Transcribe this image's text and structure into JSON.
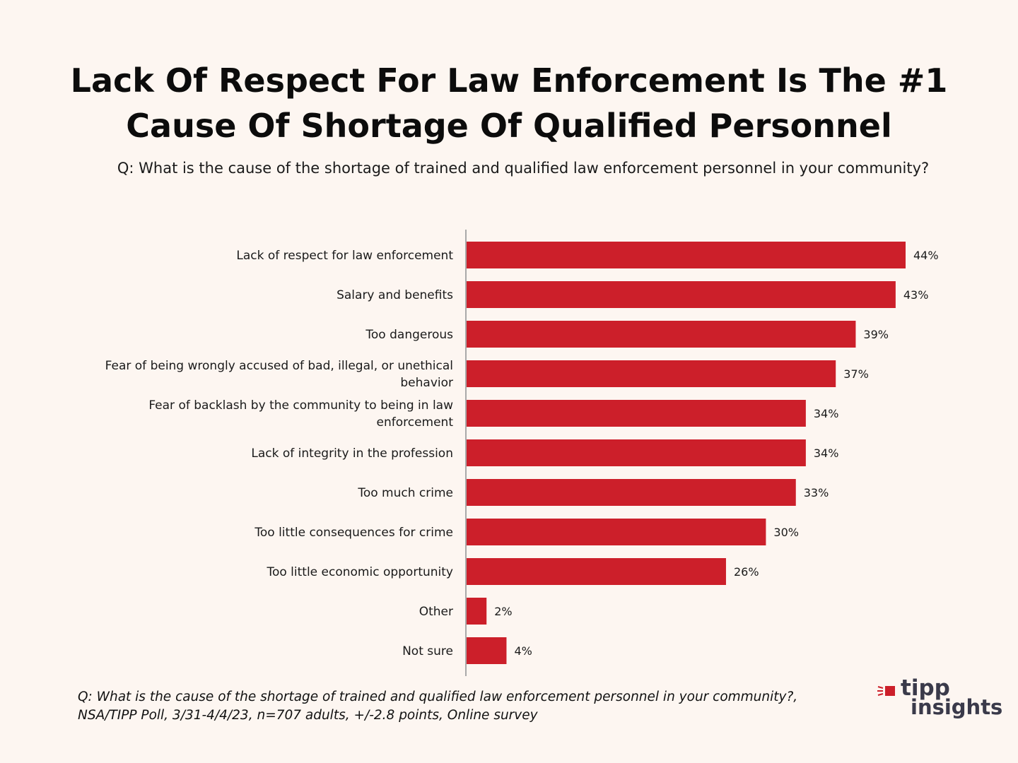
{
  "title_line1": "Lack Of Respect For Law Enforcement Is The #1",
  "title_line2": "Cause Of Shortage Of Qualified Personnel",
  "question": "Q: What is the cause of the shortage of trained and qualified law enforcement personnel in your community?",
  "footnote_line1": "Q: What is the cause of the shortage of trained and qualified law enforcement personnel in your community?,",
  "footnote_line2": "NSA/TIPP Poll, 3/31-4/4/23, n=707 adults, +/-2.8 points, Online survey",
  "logo": {
    "top": "tipp",
    "bottom": "insights"
  },
  "colors": {
    "bar": "#cc1f2a",
    "background": "#fdf6f1",
    "axis": "#a9a9a9"
  },
  "chart_data": {
    "type": "bar",
    "orientation": "horizontal",
    "categories": [
      [
        "Lack of respect for law enforcement"
      ],
      [
        "Salary and benefits"
      ],
      [
        "Too dangerous"
      ],
      [
        "Fear of being wrongly accused of bad, illegal, or unethical",
        "behavior"
      ],
      [
        "Fear of backlash by the community to being in law",
        "enforcement"
      ],
      [
        "Lack of integrity in the profession"
      ],
      [
        "Too much crime"
      ],
      [
        "Too little consequences for crime"
      ],
      [
        "Too little economic opportunity"
      ],
      [
        "Other"
      ],
      [
        "Not sure"
      ]
    ],
    "values": [
      44,
      43,
      39,
      37,
      34,
      34,
      33,
      30,
      26,
      2,
      4
    ],
    "value_labels": [
      "44%",
      "43%",
      "39%",
      "37%",
      "34%",
      "34%",
      "33%",
      "30%",
      "26%",
      "2%",
      "4%"
    ],
    "xlim": [
      0,
      44
    ],
    "grid": false,
    "legend": "none"
  }
}
